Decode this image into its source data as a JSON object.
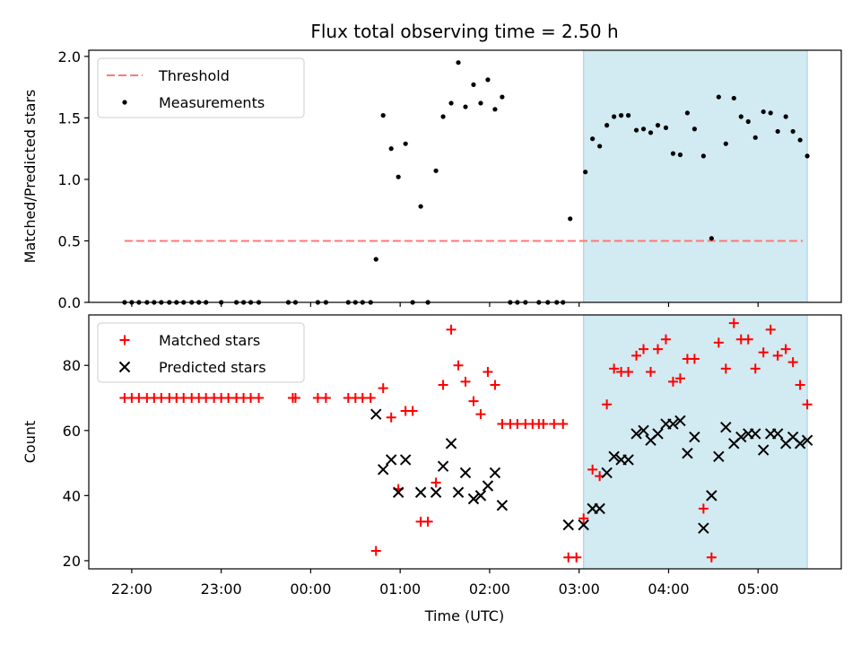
{
  "chart_data": {
    "title": "Flux total observing time = 2.50 h",
    "xlabel": "Time (UTC)",
    "x_unit": "hours relative to 00:00 UTC",
    "x_range": [
      -2.48,
      5.93
    ],
    "x_ticks": [
      -2,
      -1,
      0,
      1,
      2,
      3,
      4,
      5
    ],
    "x_tick_labels": [
      "22:00",
      "23:00",
      "00:00",
      "01:00",
      "02:00",
      "03:00",
      "04:00",
      "05:00"
    ],
    "highlight_span": {
      "x0": 3.05,
      "x1": 5.55,
      "color": "#add8e6"
    },
    "panels": [
      {
        "type": "scatter",
        "ylabel": "Matched/Predicted stars",
        "ylim": [
          0,
          2.05
        ],
        "y_ticks": [
          0.0,
          0.5,
          1.0,
          1.5,
          2.0
        ],
        "y_tick_labels": [
          "0.0",
          "0.5",
          "1.0",
          "1.5",
          "2.0"
        ],
        "legend": {
          "position": "top-left",
          "entries": [
            "Threshold",
            "Measurements"
          ]
        },
        "threshold": {
          "name": "Threshold",
          "y": 0.5,
          "x_start": -2.08,
          "x_end": 5.5,
          "color": "#ff7777",
          "style": "dashed"
        },
        "series": [
          {
            "name": "Measurements",
            "marker": "dot",
            "color": "#000000",
            "x": [
              -2.08,
              -2.0,
              -1.92,
              -1.83,
              -1.75,
              -1.67,
              -1.58,
              -1.5,
              -1.42,
              -1.33,
              -1.25,
              -1.17,
              -1.0,
              -0.83,
              -0.75,
              -0.67,
              -0.58,
              -0.25,
              -0.17,
              0.08,
              0.17,
              0.42,
              0.5,
              0.58,
              0.67,
              0.73,
              0.81,
              0.9,
              0.98,
              1.06,
              1.14,
              1.23,
              1.31,
              1.4,
              1.48,
              1.57,
              1.65,
              1.73,
              1.82,
              1.9,
              1.98,
              2.06,
              2.14,
              2.23,
              2.31,
              2.4,
              2.55,
              2.65,
              2.75,
              2.82,
              2.9,
              3.07,
              3.15,
              3.23,
              3.31,
              3.39,
              3.47,
              3.55,
              3.64,
              3.72,
              3.8,
              3.88,
              3.97,
              4.05,
              4.13,
              4.21,
              4.29,
              4.39,
              4.48,
              4.56,
              4.64,
              4.73,
              4.81,
              4.89,
              4.97,
              5.06,
              5.14,
              5.22,
              5.31,
              5.39,
              5.47,
              5.55
            ],
            "y": [
              0,
              0,
              0,
              0,
              0,
              0,
              0,
              0,
              0,
              0,
              0,
              0,
              0,
              0,
              0,
              0,
              0,
              0,
              0,
              0,
              0,
              0,
              0,
              0,
              0,
              0.35,
              1.52,
              1.25,
              1.02,
              1.29,
              0,
              0.78,
              0,
              1.07,
              1.51,
              1.62,
              1.95,
              1.59,
              1.77,
              1.62,
              1.81,
              1.57,
              1.67,
              0,
              0,
              0,
              0,
              0,
              0,
              0,
              0.68,
              1.06,
              1.33,
              1.27,
              1.44,
              1.51,
              1.52,
              1.52,
              1.4,
              1.41,
              1.38,
              1.44,
              1.42,
              1.21,
              1.2,
              1.54,
              1.41,
              1.19,
              0.52,
              1.67,
              1.29,
              1.66,
              1.51,
              1.47,
              1.34,
              1.55,
              1.54,
              1.39,
              1.51,
              1.39,
              1.32,
              1.19
            ]
          }
        ]
      },
      {
        "type": "scatter",
        "ylabel": "Count",
        "ylim": [
          17.5,
          95.5
        ],
        "y_ticks": [
          20,
          40,
          60,
          80
        ],
        "y_tick_labels": [
          "20",
          "40",
          "60",
          "80"
        ],
        "legend": {
          "position": "top-left",
          "entries": [
            "Matched stars",
            "Predicted stars"
          ]
        },
        "series": [
          {
            "name": "Matched stars",
            "marker": "plus",
            "color": "#ff0000",
            "x": [
              -2.08,
              -2.0,
              -1.92,
              -1.83,
              -1.75,
              -1.67,
              -1.58,
              -1.5,
              -1.42,
              -1.33,
              -1.25,
              -1.17,
              -1.08,
              -1.0,
              -0.92,
              -0.83,
              -0.75,
              -0.67,
              -0.58,
              -0.2,
              -0.17,
              0.08,
              0.17,
              0.42,
              0.5,
              0.58,
              0.67,
              0.73,
              0.81,
              0.9,
              0.98,
              1.06,
              1.14,
              1.23,
              1.31,
              1.4,
              1.48,
              1.57,
              1.65,
              1.73,
              1.82,
              1.9,
              1.98,
              2.06,
              2.14,
              2.23,
              2.31,
              2.4,
              2.48,
              2.55,
              2.6,
              2.72,
              2.82,
              2.88,
              2.97,
              3.05,
              3.15,
              3.23,
              3.31,
              3.39,
              3.47,
              3.55,
              3.64,
              3.72,
              3.8,
              3.88,
              3.97,
              4.05,
              4.13,
              4.21,
              4.29,
              4.39,
              4.48,
              4.56,
              4.64,
              4.73,
              4.81,
              4.89,
              4.97,
              5.06,
              5.14,
              5.22,
              5.31,
              5.39,
              5.47,
              5.55
            ],
            "y": [
              70,
              70,
              70,
              70,
              70,
              70,
              70,
              70,
              70,
              70,
              70,
              70,
              70,
              70,
              70,
              70,
              70,
              70,
              70,
              70,
              70,
              70,
              70,
              70,
              70,
              70,
              70,
              23,
              73,
              64,
              42,
              66,
              66,
              32,
              32,
              44,
              74,
              91,
              80,
              75,
              69,
              65,
              78,
              74,
              62,
              62,
              62,
              62,
              62,
              62,
              62,
              62,
              62,
              21,
              21,
              33,
              48,
              46,
              68,
              79,
              78,
              78,
              83,
              85,
              78,
              85,
              88,
              75,
              76,
              82,
              82,
              36,
              21,
              87,
              79,
              93,
              88,
              88,
              79,
              84,
              91,
              83,
              85,
              81,
              74,
              68
            ]
          },
          {
            "name": "Predicted stars",
            "marker": "x",
            "color": "#000000",
            "x": [
              0.73,
              0.81,
              0.9,
              0.98,
              1.06,
              1.23,
              1.4,
              1.48,
              1.57,
              1.65,
              1.73,
              1.82,
              1.9,
              1.98,
              2.06,
              2.14,
              2.88,
              3.05,
              3.15,
              3.23,
              3.31,
              3.39,
              3.47,
              3.55,
              3.64,
              3.72,
              3.8,
              3.88,
              3.97,
              4.05,
              4.13,
              4.21,
              4.29,
              4.39,
              4.48,
              4.56,
              4.64,
              4.73,
              4.81,
              4.89,
              4.97,
              5.06,
              5.14,
              5.22,
              5.31,
              5.39,
              5.47,
              5.55
            ],
            "y": [
              65,
              48,
              51,
              41,
              51,
              41,
              41,
              49,
              56,
              41,
              47,
              39,
              40,
              43,
              47,
              37,
              31,
              31,
              36,
              36,
              47,
              52,
              51,
              51,
              59,
              60,
              57,
              59,
              62,
              62,
              63,
              53,
              58,
              30,
              40,
              52,
              61,
              56,
              58,
              59,
              59,
              54,
              59,
              59,
              56,
              58,
              56,
              57
            ]
          }
        ]
      }
    ]
  }
}
